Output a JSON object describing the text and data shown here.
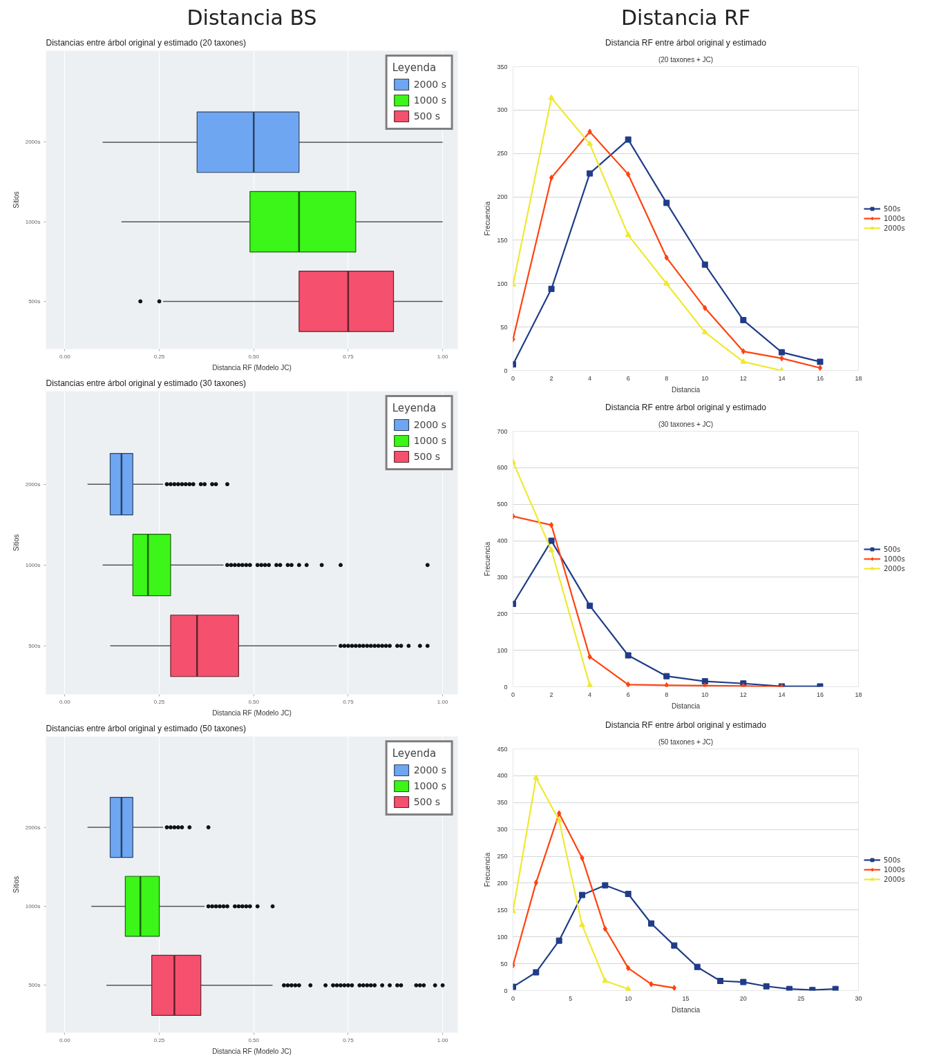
{
  "chart_data": [
    {
      "type": "box",
      "orientation": "horizontal",
      "title": "Distancias entre árbol original y estimado (20 taxones)",
      "annotations": [
        "Distancia BS"
      ],
      "xlabel": "Distancia RF (Modelo JC)",
      "ylabel": "Sitios",
      "legend_title": "Leyenda",
      "legend": "top right",
      "grid": "x",
      "categories": [
        "2000s",
        "1000s",
        "500s"
      ],
      "xlim": [
        -0.05,
        1.04
      ],
      "xticks": [
        {
          "value": 0,
          "label": "0.00"
        },
        {
          "value": 0.25,
          "label": "0.25"
        },
        {
          "value": 0.5,
          "label": "0.50"
        },
        {
          "value": 0.75,
          "label": "0.75"
        },
        {
          "value": 1,
          "label": "1.00"
        }
      ],
      "series": [
        {
          "name": "2000 s",
          "color": "#6ea6f2",
          "boxes": [
            {
              "low": 0.1,
              "q1": 0.35,
              "median": 0.5,
              "q3": 0.62,
              "high": 1.0
            },
            null,
            null
          ]
        },
        {
          "name": "1000 s",
          "color": "#3cf519",
          "boxes": [
            null,
            {
              "low": 0.15,
              "q1": 0.49,
              "median": 0.62,
              "q3": 0.77,
              "high": 1.0
            },
            null
          ]
        },
        {
          "name": "500 s",
          "color": "#f5506e",
          "boxes": [
            null,
            null,
            {
              "low": 0.26,
              "q1": 0.62,
              "median": 0.75,
              "q3": 0.87,
              "high": 1.0,
              "outliers": [
                0.2,
                0.25
              ]
            }
          ]
        }
      ]
    },
    {
      "type": "box",
      "orientation": "horizontal",
      "title": "Distancias entre árbol original y estimado (30 taxones)",
      "xlabel": "Distancia RF (Modelo JC)",
      "ylabel": "Sitios",
      "legend_title": "Leyenda",
      "legend": "top right",
      "grid": "x",
      "categories": [
        "2000s",
        "1000s",
        "500s"
      ],
      "xlim": [
        -0.05,
        1.04
      ],
      "xticks": [
        {
          "value": 0,
          "label": "0.00"
        },
        {
          "value": 0.25,
          "label": "0.25"
        },
        {
          "value": 0.5,
          "label": "0.50"
        },
        {
          "value": 0.75,
          "label": "0.75"
        },
        {
          "value": 1,
          "label": "1.00"
        }
      ],
      "series": [
        {
          "name": "2000 s",
          "color": "#6ea6f2",
          "boxes": [
            {
              "low": 0.06,
              "q1": 0.12,
              "median": 0.15,
              "q3": 0.18,
              "high": 0.26,
              "outliers": [
                0.27,
                0.28,
                0.29,
                0.3,
                0.31,
                0.32,
                0.33,
                0.34,
                0.36,
                0.37,
                0.39,
                0.4,
                0.43
              ]
            },
            null,
            null
          ]
        },
        {
          "name": "1000 s",
          "color": "#3cf519",
          "boxes": [
            null,
            {
              "low": 0.1,
              "q1": 0.18,
              "median": 0.22,
              "q3": 0.28,
              "high": 0.42,
              "outliers": [
                0.43,
                0.44,
                0.45,
                0.46,
                0.47,
                0.48,
                0.49,
                0.51,
                0.52,
                0.53,
                0.54,
                0.56,
                0.57,
                0.59,
                0.6,
                0.62,
                0.64,
                0.68,
                0.73,
                0.96
              ]
            },
            null
          ]
        },
        {
          "name": "500 s",
          "color": "#f5506e",
          "boxes": [
            null,
            null,
            {
              "low": 0.12,
              "q1": 0.28,
              "median": 0.35,
              "q3": 0.46,
              "high": 0.72,
              "outliers": [
                0.73,
                0.74,
                0.75,
                0.76,
                0.77,
                0.78,
                0.79,
                0.8,
                0.81,
                0.82,
                0.83,
                0.84,
                0.85,
                0.86,
                0.88,
                0.89,
                0.91,
                0.94,
                0.96
              ]
            }
          ]
        }
      ]
    },
    {
      "type": "box",
      "orientation": "horizontal",
      "title": "Distancias entre árbol original y estimado (50 taxones)",
      "xlabel": "Distancia RF (Modelo JC)",
      "ylabel": "Sitios",
      "legend_title": "Leyenda",
      "legend": "top right",
      "grid": "x",
      "categories": [
        "2000s",
        "1000s",
        "500s"
      ],
      "xlim": [
        -0.05,
        1.04
      ],
      "xticks": [
        {
          "value": 0,
          "label": "0.00"
        },
        {
          "value": 0.25,
          "label": "0.25"
        },
        {
          "value": 0.5,
          "label": "0.50"
        },
        {
          "value": 0.75,
          "label": "0.75"
        },
        {
          "value": 1,
          "label": "1.00"
        }
      ],
      "series": [
        {
          "name": "2000 s",
          "color": "#6ea6f2",
          "boxes": [
            {
              "low": 0.06,
              "q1": 0.12,
              "median": 0.15,
              "q3": 0.18,
              "high": 0.26,
              "outliers": [
                0.27,
                0.28,
                0.29,
                0.3,
                0.31,
                0.33,
                0.38
              ]
            },
            null,
            null
          ]
        },
        {
          "name": "1000 s",
          "color": "#3cf519",
          "boxes": [
            null,
            {
              "low": 0.07,
              "q1": 0.16,
              "median": 0.2,
              "q3": 0.25,
              "high": 0.37,
              "outliers": [
                0.38,
                0.39,
                0.4,
                0.41,
                0.42,
                0.43,
                0.45,
                0.46,
                0.47,
                0.48,
                0.49,
                0.51,
                0.55
              ]
            },
            null
          ]
        },
        {
          "name": "500 s",
          "color": "#f5506e",
          "boxes": [
            null,
            null,
            {
              "low": 0.11,
              "q1": 0.23,
              "median": 0.29,
              "q3": 0.36,
              "high": 0.55,
              "outliers": [
                0.58,
                0.59,
                0.6,
                0.61,
                0.62,
                0.65,
                0.69,
                0.71,
                0.72,
                0.73,
                0.74,
                0.75,
                0.76,
                0.78,
                0.79,
                0.8,
                0.81,
                0.82,
                0.84,
                0.86,
                0.88,
                0.89,
                0.93,
                0.94,
                0.95,
                0.98,
                1.0
              ]
            }
          ]
        }
      ]
    },
    {
      "type": "line",
      "title": "Distancia RF entre árbol original y estimado",
      "subtitle": "(20 taxones + JC)",
      "annotations": [
        "Distancia RF"
      ],
      "xlabel": "Distancia",
      "ylabel": "Frecuencia",
      "legend": "right",
      "grid": "y",
      "xlim": [
        0,
        18
      ],
      "xticks": [
        0,
        2,
        4,
        6,
        8,
        10,
        12,
        14,
        16,
        18
      ],
      "ylim": [
        0,
        350
      ],
      "yticks": [
        0,
        50,
        100,
        150,
        200,
        250,
        300,
        350
      ],
      "series": [
        {
          "name": "500s",
          "color": "#1f3c88",
          "marker": "square",
          "x": [
            0,
            2,
            4,
            6,
            8,
            10,
            12,
            14,
            16
          ],
          "values": [
            7,
            94,
            227,
            266,
            193,
            122,
            58,
            21,
            10
          ]
        },
        {
          "name": "1000s",
          "color": "#ff420e",
          "marker": "diamond",
          "x": [
            0,
            2,
            4,
            6,
            8,
            10,
            12,
            14,
            16
          ],
          "values": [
            36,
            222,
            275,
            226,
            130,
            72,
            22,
            14,
            3
          ]
        },
        {
          "name": "2000s",
          "color": "#f0e830",
          "marker": "triangle",
          "x": [
            0,
            2,
            4,
            6,
            8,
            10,
            12,
            14
          ],
          "values": [
            99,
            314,
            261,
            156,
            100,
            44,
            10,
            0
          ]
        }
      ]
    },
    {
      "type": "line",
      "title": "Distancia RF entre árbol original y estimado",
      "subtitle": "(30 taxones + JC)",
      "xlabel": "Distancia",
      "ylabel": "Frecuencia",
      "legend": "right",
      "grid": "y",
      "xlim": [
        0,
        18
      ],
      "xticks": [
        0,
        2,
        4,
        6,
        8,
        10,
        12,
        14,
        16,
        18
      ],
      "ylim": [
        0,
        700
      ],
      "yticks": [
        0,
        100,
        200,
        300,
        400,
        500,
        600,
        700
      ],
      "series": [
        {
          "name": "500s",
          "color": "#1f3c88",
          "marker": "square",
          "x": [
            0,
            2,
            4,
            6,
            8,
            10,
            12,
            14,
            16
          ],
          "values": [
            227,
            400,
            222,
            86,
            29,
            15,
            9,
            1,
            1
          ]
        },
        {
          "name": "1000s",
          "color": "#ff420e",
          "marker": "diamond",
          "x": [
            0,
            2,
            4,
            6,
            8,
            10,
            12,
            14
          ],
          "values": [
            467,
            443,
            82,
            6,
            4,
            3,
            2,
            0
          ]
        },
        {
          "name": "2000s",
          "color": "#f0e830",
          "marker": "triangle",
          "x": [
            0,
            2,
            4
          ],
          "values": [
            616,
            374,
            4
          ]
        }
      ]
    },
    {
      "type": "line",
      "title": "Distancia RF entre árbol original y estimado",
      "subtitle": "(50 taxones + JC)",
      "xlabel": "Distancia",
      "ylabel": "Frecuencia",
      "legend": "right",
      "grid": "y",
      "xlim": [
        0,
        30
      ],
      "xticks": [
        0,
        5,
        10,
        15,
        20,
        25,
        30
      ],
      "ylim": [
        0,
        450
      ],
      "yticks": [
        0,
        50,
        100,
        150,
        200,
        250,
        300,
        350,
        400,
        450
      ],
      "series": [
        {
          "name": "500s",
          "color": "#1f3c88",
          "marker": "square",
          "x": [
            0,
            2,
            4,
            6,
            8,
            10,
            12,
            14,
            16,
            18,
            20,
            22,
            24,
            26,
            28
          ],
          "values": [
            7,
            34,
            93,
            178,
            196,
            180,
            125,
            84,
            44,
            18,
            16,
            8,
            3,
            1,
            3
          ]
        },
        {
          "name": "1000s",
          "color": "#ff420e",
          "marker": "diamond",
          "x": [
            0,
            2,
            4,
            6,
            8,
            10,
            12,
            14
          ],
          "values": [
            47,
            201,
            330,
            247,
            115,
            42,
            12,
            5
          ]
        },
        {
          "name": "2000s",
          "color": "#f0e830",
          "marker": "triangle",
          "x": [
            0,
            2,
            4,
            6,
            8,
            10
          ],
          "values": [
            148,
            396,
            317,
            122,
            18,
            3
          ]
        }
      ]
    }
  ]
}
